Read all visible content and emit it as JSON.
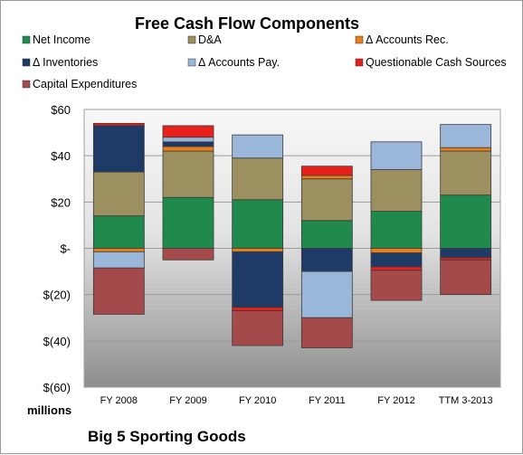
{
  "chart_data": {
    "type": "bar",
    "stacked": true,
    "title": "Free Cash Flow Components",
    "categories": [
      "FY 2008",
      "FY 2009",
      "FY 2010",
      "FY 2011",
      "FY 2012",
      "TTM 3-2013"
    ],
    "ylim": [
      -60,
      60
    ],
    "yticks": [
      60,
      40,
      20,
      0,
      -20,
      -40,
      -60
    ],
    "ytick_labels": [
      "$60",
      "$40",
      "$20",
      "$-",
      "$(20)",
      "$(40)",
      "$(60)"
    ],
    "unit_label": "millions",
    "company": "Big 5 Sporting Goods",
    "grid": true,
    "legend_position": "top",
    "series": [
      {
        "name": "Net Income",
        "color": "#1f8a4c",
        "values": [
          14,
          22,
          21,
          12,
          16,
          23
        ]
      },
      {
        "name": "D&A",
        "color": "#9c9060",
        "values": [
          19,
          20,
          18,
          18,
          18,
          19
        ]
      },
      {
        "name": "Δ Accounts Rec.",
        "color": "#e87f1a",
        "values": [
          -1.5,
          2,
          -1.5,
          1.5,
          -2,
          1.5
        ]
      },
      {
        "name": "Δ Inventories",
        "color": "#1e3a66",
        "values": [
          20,
          2,
          -24,
          -10,
          -6,
          -4
        ]
      },
      {
        "name": "Δ Accounts Pay.",
        "color": "#9ab7d9",
        "values": [
          -7,
          2,
          10,
          -20,
          12,
          10
        ]
      },
      {
        "name": "Questionable Cash Sources",
        "color": "#e8201c",
        "values": [
          1,
          5,
          -1.5,
          4,
          -1.5,
          -1
        ]
      },
      {
        "name": "Capital Expenditures",
        "color": "#a54a4a",
        "values": [
          -20,
          -5,
          -15,
          -13,
          -13,
          -15
        ]
      }
    ]
  }
}
